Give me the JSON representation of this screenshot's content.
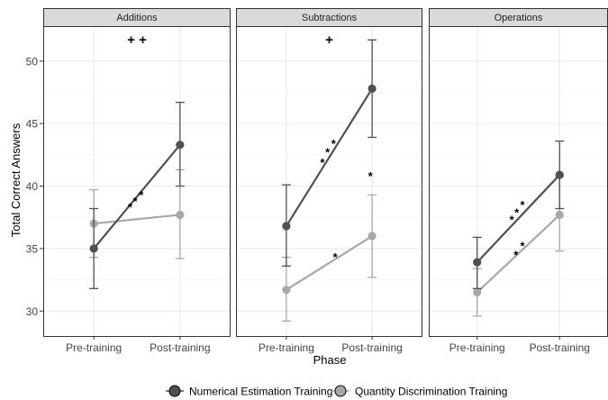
{
  "chart_data": {
    "type": "line",
    "xlabel": "Phase",
    "ylabel": "Total Correct Answers",
    "categories": [
      "Pre-training",
      "Post-training"
    ],
    "ylim": [
      28.0,
      52.8
    ],
    "yticks": [
      30,
      35,
      40,
      45,
      50
    ],
    "grid": true,
    "legend_position": "bottom",
    "legend": [
      "Numerical Estimation Training",
      "Quantity Discrimination Training"
    ],
    "colors": {
      "numerical": "#505050",
      "quantity": "#a8a8a8",
      "strip": "#d9d9d9",
      "grid": "#ebebeb"
    },
    "panels": [
      {
        "title": "Additions",
        "series": [
          {
            "key": "numerical",
            "values": [
              35.0,
              43.3
            ],
            "lower": [
              31.8,
              40.0
            ],
            "upper": [
              38.2,
              46.7
            ]
          },
          {
            "key": "quantity",
            "values": [
              37.0,
              37.7
            ],
            "lower": [
              34.3,
              34.2
            ],
            "upper": [
              39.7,
              41.3
            ]
          }
        ],
        "plus_marks": "+ +",
        "annotations": [
          {
            "text": "*",
            "x": 0.42,
            "y": 38.4
          },
          {
            "text": "*",
            "x": 0.48,
            "y": 38.9
          },
          {
            "text": "*",
            "x": 0.55,
            "y": 39.4
          }
        ]
      },
      {
        "title": "Subtractions",
        "series": [
          {
            "key": "numerical",
            "values": [
              36.8,
              47.8
            ],
            "lower": [
              33.6,
              43.9
            ],
            "upper": [
              40.1,
              51.7
            ]
          },
          {
            "key": "quantity",
            "values": [
              31.7,
              36.0
            ],
            "lower": [
              29.2,
              32.7
            ],
            "upper": [
              34.3,
              39.3
            ]
          }
        ],
        "plus_marks": "+",
        "annotations": [
          {
            "text": "*",
            "x": 0.42,
            "y": 42.0
          },
          {
            "text": "*",
            "x": 0.48,
            "y": 42.8
          },
          {
            "text": "*",
            "x": 0.55,
            "y": 43.5
          },
          {
            "text": "*",
            "x": 0.98,
            "y": 40.9
          },
          {
            "text": "*",
            "x": 0.57,
            "y": 34.4
          }
        ]
      },
      {
        "title": "Operations",
        "series": [
          {
            "key": "numerical",
            "values": [
              33.9,
              40.9
            ],
            "lower": [
              31.8,
              38.2
            ],
            "upper": [
              35.9,
              43.6
            ]
          },
          {
            "key": "quantity",
            "values": [
              31.5,
              37.7
            ],
            "lower": [
              29.6,
              34.8
            ],
            "upper": [
              33.4,
              40.8
            ]
          }
        ],
        "plus_marks": "",
        "annotations": [
          {
            "text": "*",
            "x": 0.42,
            "y": 37.4
          },
          {
            "text": "*",
            "x": 0.48,
            "y": 38.0
          },
          {
            "text": "*",
            "x": 0.55,
            "y": 38.6
          },
          {
            "text": "*",
            "x": 0.47,
            "y": 34.6
          },
          {
            "text": "*",
            "x": 0.55,
            "y": 35.3
          }
        ]
      }
    ]
  }
}
